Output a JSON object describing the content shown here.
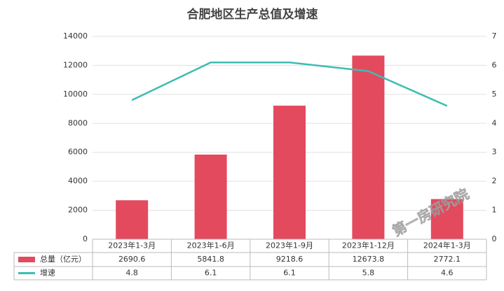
{
  "chart_data": {
    "type": "bar_line_table",
    "title": "合肥地区生产总值及增速",
    "categories": [
      "2023年1-3月",
      "2023年1-6月",
      "2023年1-9月",
      "2023年1-12月",
      "2024年1-3月"
    ],
    "series": [
      {
        "name": "总量（亿元）",
        "color": "#e34a5e",
        "type": "bar",
        "values": [
          2690.6,
          5841.8,
          9218.6,
          12673.8,
          2772.1
        ]
      },
      {
        "name": "增速",
        "color": "#3dbdb2",
        "type": "line",
        "axis": "y2",
        "values": [
          4.8,
          6.1,
          6.1,
          5.8,
          4.6
        ]
      }
    ],
    "ylim": [
      0,
      14000
    ],
    "yticks": [
      0,
      2000,
      4000,
      6000,
      8000,
      10000,
      12000,
      14000
    ],
    "y2lim": [
      0,
      7
    ],
    "y2ticks": [
      0,
      1,
      2,
      3,
      4,
      5,
      6,
      7
    ],
    "grid": true,
    "watermark": "第一房研究院"
  }
}
